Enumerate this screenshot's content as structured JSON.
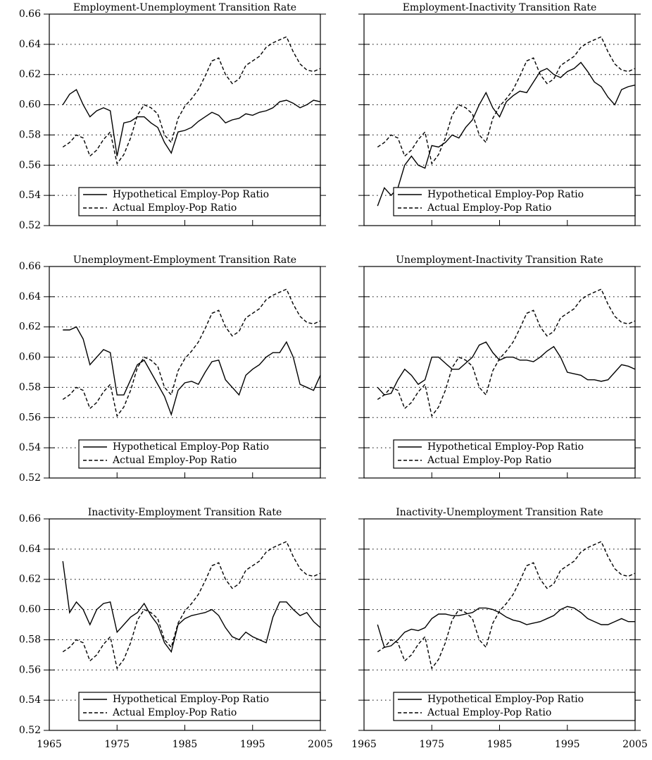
{
  "chart_data": [
    {
      "type": "line",
      "title": "Employment-Unemployment Transition Rate",
      "x": [
        1967,
        1968,
        1969,
        1970,
        1971,
        1972,
        1973,
        1974,
        1975,
        1976,
        1977,
        1978,
        1979,
        1980,
        1981,
        1982,
        1983,
        1984,
        1985,
        1986,
        1987,
        1988,
        1989,
        1990,
        1991,
        1992,
        1993,
        1994,
        1995,
        1996,
        1997,
        1998,
        1999,
        2000,
        2001,
        2002,
        2003,
        2004,
        2005
      ],
      "series": [
        {
          "name": "Hypothetical Employ-Pop Ratio",
          "color": "#000000",
          "linestyle": "solid",
          "values": [
            0.6,
            0.607,
            0.61,
            0.6,
            0.592,
            0.596,
            0.598,
            0.596,
            0.566,
            0.588,
            0.589,
            0.592,
            0.592,
            0.588,
            0.585,
            0.575,
            0.568,
            0.582,
            0.583,
            0.585,
            0.589,
            0.592,
            0.595,
            0.593,
            0.588,
            0.59,
            0.591,
            0.594,
            0.593,
            0.595,
            0.596,
            0.598,
            0.602,
            0.603,
            0.601,
            0.598,
            0.6,
            0.603,
            0.602
          ]
        },
        {
          "name": "Actual Employ-Pop Ratio",
          "color": "#000000",
          "linestyle": "dashed",
          "values": [
            0.572,
            0.575,
            0.58,
            0.578,
            0.566,
            0.57,
            0.577,
            0.582,
            0.561,
            0.567,
            0.578,
            0.593,
            0.6,
            0.598,
            0.594,
            0.58,
            0.575,
            0.591,
            0.599,
            0.604,
            0.61,
            0.619,
            0.629,
            0.631,
            0.62,
            0.614,
            0.617,
            0.626,
            0.629,
            0.632,
            0.638,
            0.641,
            0.643,
            0.645,
            0.635,
            0.627,
            0.623,
            0.622,
            0.624
          ]
        }
      ],
      "xlim": [
        1965,
        2005
      ],
      "xticks": [
        1965,
        1975,
        1985,
        1995,
        2005
      ],
      "ylim": [
        0.52,
        0.66
      ],
      "yticks": [
        0.52,
        0.54,
        0.56,
        0.58,
        {
          "value": 0.6,
          "label": "0.60"
        },
        0.62,
        0.64,
        0.66
      ],
      "grid": "y",
      "legend": "lower right"
    },
    {
      "type": "line",
      "title": "Employment-Inactivity Transition Rate",
      "x": [
        1967,
        1968,
        1969,
        1970,
        1971,
        1972,
        1973,
        1974,
        1975,
        1976,
        1977,
        1978,
        1979,
        1980,
        1981,
        1982,
        1983,
        1984,
        1985,
        1986,
        1987,
        1988,
        1989,
        1990,
        1991,
        1992,
        1993,
        1994,
        1995,
        1996,
        1997,
        1998,
        1999,
        2000,
        2001,
        2002,
        2003,
        2004,
        2005
      ],
      "series": [
        {
          "name": "Hypothetical Employ-Pop Ratio",
          "color": "#000000",
          "linestyle": "solid",
          "values": [
            0.533,
            0.545,
            0.54,
            0.545,
            0.56,
            0.566,
            0.56,
            0.558,
            0.573,
            0.572,
            0.575,
            0.58,
            0.578,
            0.585,
            0.59,
            0.6,
            0.608,
            0.598,
            0.592,
            0.602,
            0.606,
            0.609,
            0.608,
            0.615,
            0.622,
            0.624,
            0.62,
            0.618,
            0.622,
            0.624,
            0.628,
            0.622,
            0.615,
            0.612,
            0.605,
            0.6,
            0.61,
            0.612,
            0.613
          ]
        },
        {
          "name": "Actual Employ-Pop Ratio",
          "color": "#000000",
          "linestyle": "dashed",
          "values": [
            0.572,
            0.575,
            0.58,
            0.578,
            0.566,
            0.57,
            0.577,
            0.582,
            0.561,
            0.567,
            0.578,
            0.593,
            0.6,
            0.598,
            0.594,
            0.58,
            0.575,
            0.591,
            0.599,
            0.604,
            0.61,
            0.619,
            0.629,
            0.631,
            0.62,
            0.614,
            0.617,
            0.626,
            0.629,
            0.632,
            0.638,
            0.641,
            0.643,
            0.645,
            0.635,
            0.627,
            0.623,
            0.622,
            0.624
          ]
        }
      ],
      "xlim": [
        1965,
        2005
      ],
      "xticks": [
        1965,
        1975,
        1985,
        1995,
        2005
      ],
      "ylim": [
        0.52,
        0.66
      ],
      "yticks": [
        0.52,
        0.54,
        0.56,
        0.58,
        {
          "value": 0.6,
          "label": "0.60"
        },
        0.62,
        0.64,
        0.66
      ],
      "grid": "y",
      "legend": "lower right"
    },
    {
      "type": "line",
      "title": "Unemployment-Employment Transition Rate",
      "x": [
        1967,
        1968,
        1969,
        1970,
        1971,
        1972,
        1973,
        1974,
        1975,
        1976,
        1977,
        1978,
        1979,
        1980,
        1981,
        1982,
        1983,
        1984,
        1985,
        1986,
        1987,
        1988,
        1989,
        1990,
        1991,
        1992,
        1993,
        1994,
        1995,
        1996,
        1997,
        1998,
        1999,
        2000,
        2001,
        2002,
        2003,
        2004,
        2005
      ],
      "series": [
        {
          "name": "Hypothetical Employ-Pop Ratio",
          "color": "#000000",
          "linestyle": "solid",
          "values": [
            0.618,
            0.618,
            0.62,
            0.612,
            0.595,
            0.6,
            0.605,
            0.603,
            0.575,
            0.575,
            0.585,
            0.595,
            0.598,
            0.59,
            0.582,
            0.574,
            0.562,
            0.578,
            0.583,
            0.584,
            0.582,
            0.59,
            0.597,
            0.598,
            0.585,
            0.58,
            0.575,
            0.588,
            0.592,
            0.595,
            0.6,
            0.603,
            0.603,
            0.61,
            0.6,
            0.582,
            0.58,
            0.578,
            0.588
          ]
        },
        {
          "name": "Actual Employ-Pop Ratio",
          "color": "#000000",
          "linestyle": "dashed",
          "values": [
            0.572,
            0.575,
            0.58,
            0.578,
            0.566,
            0.57,
            0.577,
            0.582,
            0.561,
            0.567,
            0.578,
            0.593,
            0.6,
            0.598,
            0.594,
            0.58,
            0.575,
            0.591,
            0.599,
            0.604,
            0.61,
            0.619,
            0.629,
            0.631,
            0.62,
            0.614,
            0.617,
            0.626,
            0.629,
            0.632,
            0.638,
            0.641,
            0.643,
            0.645,
            0.635,
            0.627,
            0.623,
            0.622,
            0.624
          ]
        }
      ],
      "xlim": [
        1965,
        2005
      ],
      "xticks": [
        1965,
        1975,
        1985,
        1995,
        2005
      ],
      "ylim": [
        0.52,
        0.66
      ],
      "yticks": [
        0.52,
        0.54,
        0.56,
        0.58,
        {
          "value": 0.6,
          "label": "0.60"
        },
        0.62,
        0.64,
        0.66
      ],
      "grid": "y",
      "legend": "lower right"
    },
    {
      "type": "line",
      "title": "Unemployment-Inactivity Transition Rate",
      "x": [
        1967,
        1968,
        1969,
        1970,
        1971,
        1972,
        1973,
        1974,
        1975,
        1976,
        1977,
        1978,
        1979,
        1980,
        1981,
        1982,
        1983,
        1984,
        1985,
        1986,
        1987,
        1988,
        1989,
        1990,
        1991,
        1992,
        1993,
        1994,
        1995,
        1996,
        1997,
        1998,
        1999,
        2000,
        2001,
        2002,
        2003,
        2004,
        2005
      ],
      "series": [
        {
          "name": "Hypothetical Employ-Pop Ratio",
          "color": "#000000",
          "linestyle": "solid",
          "values": [
            0.58,
            0.575,
            0.576,
            0.585,
            0.592,
            0.588,
            0.582,
            0.585,
            0.6,
            0.6,
            0.596,
            0.592,
            0.592,
            0.596,
            0.6,
            0.608,
            0.61,
            0.603,
            0.598,
            0.6,
            0.6,
            0.598,
            0.598,
            0.597,
            0.6,
            0.604,
            0.607,
            0.6,
            0.59,
            0.589,
            0.588,
            0.585,
            0.585,
            0.584,
            0.585,
            0.59,
            0.595,
            0.594,
            0.592
          ]
        },
        {
          "name": "Actual Employ-Pop Ratio",
          "color": "#000000",
          "linestyle": "dashed",
          "values": [
            0.572,
            0.575,
            0.58,
            0.578,
            0.566,
            0.57,
            0.577,
            0.582,
            0.561,
            0.567,
            0.578,
            0.593,
            0.6,
            0.598,
            0.594,
            0.58,
            0.575,
            0.591,
            0.599,
            0.604,
            0.61,
            0.619,
            0.629,
            0.631,
            0.62,
            0.614,
            0.617,
            0.626,
            0.629,
            0.632,
            0.638,
            0.641,
            0.643,
            0.645,
            0.635,
            0.627,
            0.623,
            0.622,
            0.624
          ]
        }
      ],
      "xlim": [
        1965,
        2005
      ],
      "xticks": [
        1965,
        1975,
        1985,
        1995,
        2005
      ],
      "ylim": [
        0.52,
        0.66
      ],
      "yticks": [
        0.52,
        0.54,
        0.56,
        0.58,
        {
          "value": 0.6,
          "label": "0.60"
        },
        0.62,
        0.64,
        0.66
      ],
      "grid": "y",
      "legend": "lower right"
    },
    {
      "type": "line",
      "title": "Inactivity-Employment Transition Rate",
      "x": [
        1967,
        1968,
        1969,
        1970,
        1971,
        1972,
        1973,
        1974,
        1975,
        1976,
        1977,
        1978,
        1979,
        1980,
        1981,
        1982,
        1983,
        1984,
        1985,
        1986,
        1987,
        1988,
        1989,
        1990,
        1991,
        1992,
        1993,
        1994,
        1995,
        1996,
        1997,
        1998,
        1999,
        2000,
        2001,
        2002,
        2003,
        2004,
        2005
      ],
      "series": [
        {
          "name": "Hypothetical Employ-Pop Ratio",
          "color": "#000000",
          "linestyle": "solid",
          "values": [
            0.632,
            0.598,
            0.605,
            0.6,
            0.59,
            0.6,
            0.604,
            0.605,
            0.585,
            0.59,
            0.595,
            0.598,
            0.604,
            0.596,
            0.59,
            0.578,
            0.572,
            0.59,
            0.594,
            0.596,
            0.597,
            0.598,
            0.6,
            0.596,
            0.588,
            0.582,
            0.58,
            0.585,
            0.582,
            0.58,
            0.578,
            0.595,
            0.605,
            0.605,
            0.6,
            0.596,
            0.598,
            0.592,
            0.588
          ]
        },
        {
          "name": "Actual Employ-Pop Ratio",
          "color": "#000000",
          "linestyle": "dashed",
          "values": [
            0.572,
            0.575,
            0.58,
            0.578,
            0.566,
            0.57,
            0.577,
            0.582,
            0.561,
            0.567,
            0.578,
            0.593,
            0.6,
            0.598,
            0.594,
            0.58,
            0.575,
            0.591,
            0.599,
            0.604,
            0.61,
            0.619,
            0.629,
            0.631,
            0.62,
            0.614,
            0.617,
            0.626,
            0.629,
            0.632,
            0.638,
            0.641,
            0.643,
            0.645,
            0.635,
            0.627,
            0.623,
            0.622,
            0.624
          ]
        }
      ],
      "xlim": [
        1965,
        2005
      ],
      "xticks": [
        1965,
        1975,
        1985,
        1995,
        2005
      ],
      "ylim": [
        0.52,
        0.66
      ],
      "yticks": [
        0.52,
        0.54,
        0.56,
        0.58,
        {
          "value": 0.6,
          "label": "0.60"
        },
        0.62,
        0.64,
        0.66
      ],
      "grid": "y",
      "legend": "lower right"
    },
    {
      "type": "line",
      "title": "Inactivity-Unemployment Transition Rate",
      "x": [
        1967,
        1968,
        1969,
        1970,
        1971,
        1972,
        1973,
        1974,
        1975,
        1976,
        1977,
        1978,
        1979,
        1980,
        1981,
        1982,
        1983,
        1984,
        1985,
        1986,
        1987,
        1988,
        1989,
        1990,
        1991,
        1992,
        1993,
        1994,
        1995,
        1996,
        1997,
        1998,
        1999,
        2000,
        2001,
        2002,
        2003,
        2004,
        2005
      ],
      "series": [
        {
          "name": "Hypothetical Employ-Pop Ratio",
          "color": "#000000",
          "linestyle": "solid",
          "values": [
            0.59,
            0.575,
            0.576,
            0.58,
            0.585,
            0.587,
            0.586,
            0.588,
            0.594,
            0.597,
            0.597,
            0.596,
            0.596,
            0.597,
            0.598,
            0.601,
            0.601,
            0.6,
            0.598,
            0.595,
            0.593,
            0.592,
            0.59,
            0.591,
            0.592,
            0.594,
            0.596,
            0.6,
            0.602,
            0.601,
            0.598,
            0.594,
            0.592,
            0.59,
            0.59,
            0.592,
            0.594,
            0.592,
            0.592
          ]
        },
        {
          "name": "Actual Employ-Pop Ratio",
          "color": "#000000",
          "linestyle": "dashed",
          "values": [
            0.572,
            0.575,
            0.58,
            0.578,
            0.566,
            0.57,
            0.577,
            0.582,
            0.561,
            0.567,
            0.578,
            0.593,
            0.6,
            0.598,
            0.594,
            0.58,
            0.575,
            0.591,
            0.599,
            0.604,
            0.61,
            0.619,
            0.629,
            0.631,
            0.62,
            0.614,
            0.617,
            0.626,
            0.629,
            0.632,
            0.638,
            0.641,
            0.643,
            0.645,
            0.635,
            0.627,
            0.623,
            0.622,
            0.624
          ]
        }
      ],
      "xlim": [
        1965,
        2005
      ],
      "xticks": [
        1965,
        1975,
        1985,
        1995,
        2005
      ],
      "ylim": [
        0.52,
        0.66
      ],
      "yticks": [
        0.52,
        0.54,
        0.56,
        0.58,
        {
          "value": 0.6,
          "label": "0.60"
        },
        0.62,
        0.64,
        0.66
      ],
      "grid": "y",
      "legend": "lower right"
    }
  ]
}
